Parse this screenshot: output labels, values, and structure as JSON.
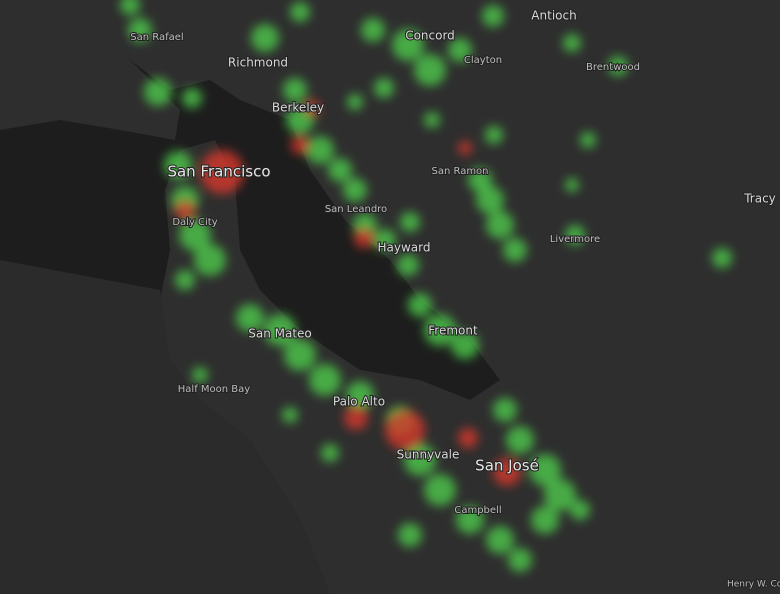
{
  "map": {
    "places": [
      {
        "name": "Antioch"
      },
      {
        "name": "San Rafael"
      },
      {
        "name": "Concord"
      },
      {
        "name": "Richmond"
      },
      {
        "name": "Clayton"
      },
      {
        "name": "Brentwood"
      },
      {
        "name": "Berkeley"
      },
      {
        "name": "San Francisco"
      },
      {
        "name": "San Ramon"
      },
      {
        "name": "Tracy"
      },
      {
        "name": "San Leandro"
      },
      {
        "name": "Daly City"
      },
      {
        "name": "Hayward"
      },
      {
        "name": "Livermore"
      },
      {
        "name": "San Mateo"
      },
      {
        "name": "Fremont"
      },
      {
        "name": "Half Moon Bay"
      },
      {
        "name": "Palo Alto"
      },
      {
        "name": "Sunnyvale"
      },
      {
        "name": "San José"
      },
      {
        "name": "Campbell"
      }
    ],
    "attribution": "Henry W. Co"
  }
}
